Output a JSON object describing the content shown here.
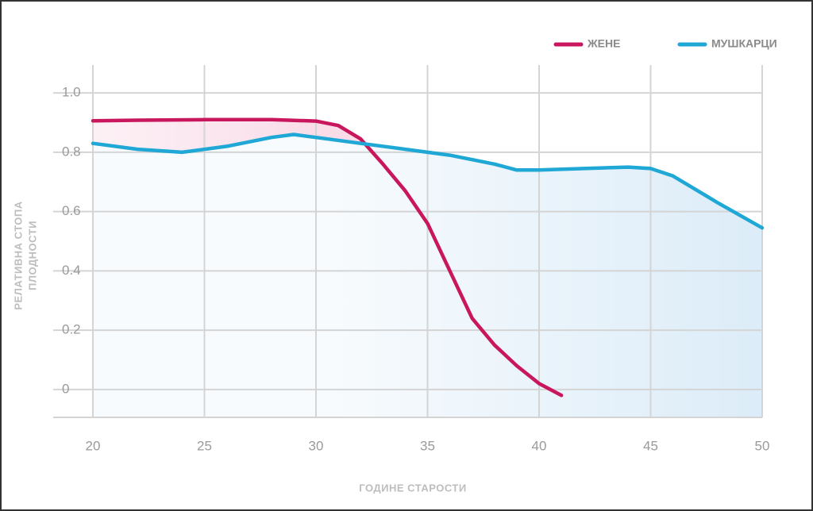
{
  "chart_data": {
    "type": "line",
    "x_label": "ГОДИНЕ СТАРОСТИ",
    "y_label": [
      "РЕЛАТИВНА СТОПА",
      "ПЛОДНОСТИ"
    ],
    "xlim": [
      20,
      50
    ],
    "xticks": [
      20,
      25,
      30,
      35,
      40,
      45,
      50
    ],
    "ylim": [
      -0.094,
      1.094
    ],
    "yticks": [
      0,
      0.2,
      0.4,
      0.6,
      0.8,
      {
        "value": 1,
        "label": "1.0"
      }
    ],
    "grid": true,
    "legend": "top-right",
    "series": [
      {
        "name": "ЖЕНЕ",
        "color": "#c8175d",
        "fill": "#f9dce8",
        "x": [
          20,
          22,
          25,
          28,
          30,
          31,
          32,
          33,
          34,
          35,
          36,
          37,
          38,
          39,
          40,
          41
        ],
        "values": [
          0.906,
          0.908,
          0.91,
          0.91,
          0.905,
          0.89,
          0.845,
          0.76,
          0.67,
          0.56,
          0.4,
          0.24,
          0.15,
          0.08,
          0.02,
          -0.02
        ]
      },
      {
        "name": "МУШКАРЦИ",
        "color": "#1fa7d6",
        "fill": "#dcecf8",
        "x": [
          20,
          22,
          24,
          26,
          28,
          29,
          30,
          32,
          34,
          36,
          38,
          39,
          40,
          42,
          44,
          45,
          46,
          48,
          50
        ],
        "values": [
          0.83,
          0.81,
          0.8,
          0.82,
          0.85,
          0.86,
          0.85,
          0.83,
          0.81,
          0.79,
          0.76,
          0.74,
          0.74,
          0.745,
          0.75,
          0.745,
          0.72,
          0.63,
          0.545
        ]
      }
    ]
  }
}
